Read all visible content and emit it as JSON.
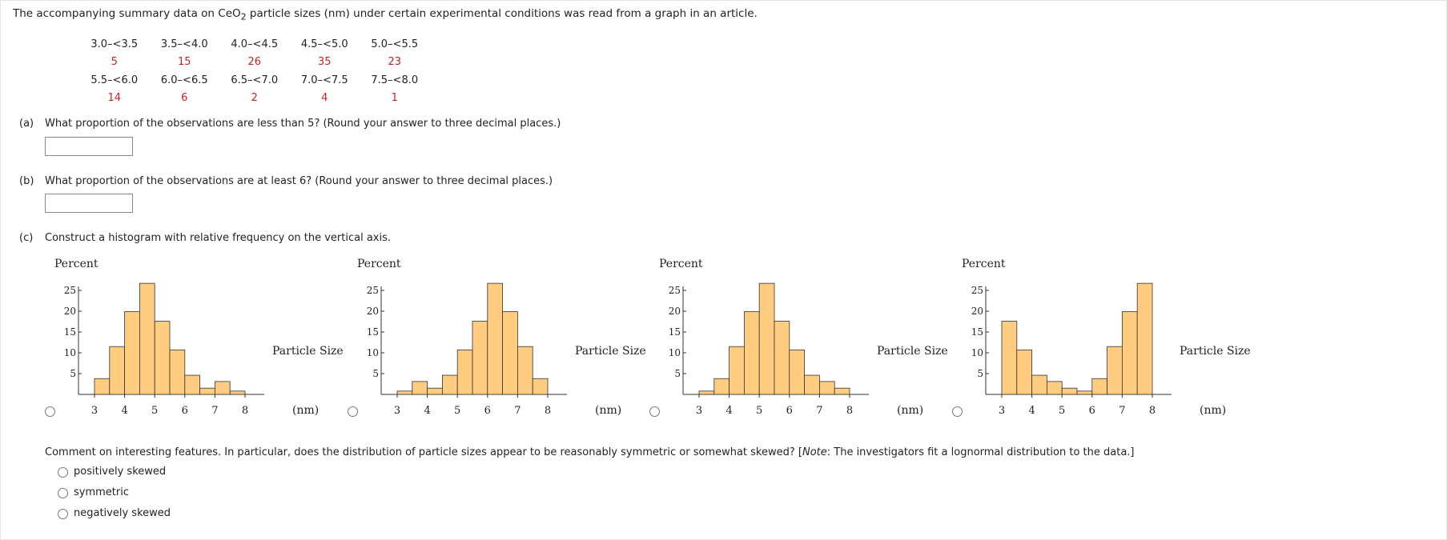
{
  "intro": {
    "before": "The accompanying summary data on CeO",
    "subscript": "2",
    "after": " particle sizes (nm) under certain experimental conditions was read from a graph in an article."
  },
  "table": {
    "rows": [
      {
        "labels": [
          "3.0–<3.5",
          "3.5–<4.0",
          "4.0–<4.5",
          "4.5–<5.0",
          "5.0–<5.5"
        ],
        "values": [
          "5",
          "15",
          "26",
          "35",
          "23"
        ]
      },
      {
        "labels": [
          "5.5–<6.0",
          "6.0–<6.5",
          "6.5–<7.0",
          "7.0–<7.5",
          "7.5–<8.0"
        ],
        "values": [
          "14",
          "6",
          "2",
          "4",
          "1"
        ]
      }
    ]
  },
  "questions": {
    "a": {
      "letter": "(a)",
      "text": "What proportion of the observations are less than 5? (Round your answer to three decimal places.)",
      "answer": ""
    },
    "b": {
      "letter": "(b)",
      "text": "What proportion of the observations are at least 6? (Round your answer to three decimal places.)",
      "answer": ""
    },
    "c": {
      "letter": "(c)",
      "text": "Construct a histogram with relative frequency on the vertical axis."
    }
  },
  "histogram_options": {
    "y_axis_title": "Percent",
    "x_axis_title_line1": "Particle Size",
    "x_axis_title_line2": "(nm)"
  },
  "chart_data": [
    {
      "type": "bar",
      "x_bin_edges": [
        3.0,
        3.5,
        4.0,
        4.5,
        5.0,
        5.5,
        6.0,
        6.5,
        7.0,
        7.5,
        8.0
      ],
      "values": [
        3.8,
        11.5,
        19.9,
        26.7,
        17.6,
        10.7,
        4.6,
        1.5,
        3.1,
        0.8
      ],
      "x_ticks": [
        3,
        4,
        5,
        6,
        7,
        8
      ],
      "y_ticks": [
        5,
        10,
        15,
        20,
        25
      ],
      "ylim": [
        0,
        27
      ],
      "ylabel": "Percent",
      "xlabel": "Particle Size (nm)"
    },
    {
      "type": "bar",
      "x_bin_edges": [
        3.0,
        3.5,
        4.0,
        4.5,
        5.0,
        5.5,
        6.0,
        6.5,
        7.0,
        7.5,
        8.0
      ],
      "values": [
        0.8,
        3.1,
        1.5,
        4.6,
        10.7,
        17.6,
        26.7,
        19.9,
        11.5,
        3.8
      ],
      "x_ticks": [
        3,
        4,
        5,
        6,
        7,
        8
      ],
      "y_ticks": [
        5,
        10,
        15,
        20,
        25
      ],
      "ylim": [
        0,
        27
      ],
      "ylabel": "Percent",
      "xlabel": "Particle Size (nm)"
    },
    {
      "type": "bar",
      "x_bin_edges": [
        3.0,
        3.5,
        4.0,
        4.5,
        5.0,
        5.5,
        6.0,
        6.5,
        7.0,
        7.5,
        8.0
      ],
      "values": [
        0.8,
        3.8,
        11.5,
        19.9,
        26.7,
        17.6,
        10.7,
        4.6,
        3.1,
        1.5
      ],
      "x_ticks": [
        3,
        4,
        5,
        6,
        7,
        8
      ],
      "y_ticks": [
        5,
        10,
        15,
        20,
        25
      ],
      "ylim": [
        0,
        27
      ],
      "ylabel": "Percent",
      "xlabel": "Particle Size (nm)"
    },
    {
      "type": "bar",
      "x_bin_edges": [
        3.0,
        3.5,
        4.0,
        4.5,
        5.0,
        5.5,
        6.0,
        6.5,
        7.0,
        7.5,
        8.0
      ],
      "values": [
        17.6,
        10.7,
        4.6,
        3.1,
        1.5,
        0.8,
        3.8,
        11.5,
        19.9,
        26.7
      ],
      "x_ticks": [
        3,
        4,
        5,
        6,
        7,
        8
      ],
      "y_ticks": [
        5,
        10,
        15,
        20,
        25
      ],
      "ylim": [
        0,
        27
      ],
      "ylabel": "Percent",
      "xlabel": "Particle Size (nm)"
    }
  ],
  "comment": {
    "before": "Comment on interesting features. In particular, does the distribution of particle sizes appear to be reasonably symmetric or somewhat skewed? [",
    "note_label": "Note",
    "after": ": The investigators fit a lognormal distribution to the data.]"
  },
  "skew_choices": [
    "positively skewed",
    "symmetric",
    "negatively skewed"
  ],
  "colors": {
    "bar_fill": "#ffcc80",
    "bar_stroke": "#333333",
    "table_value": "#cc2222"
  }
}
